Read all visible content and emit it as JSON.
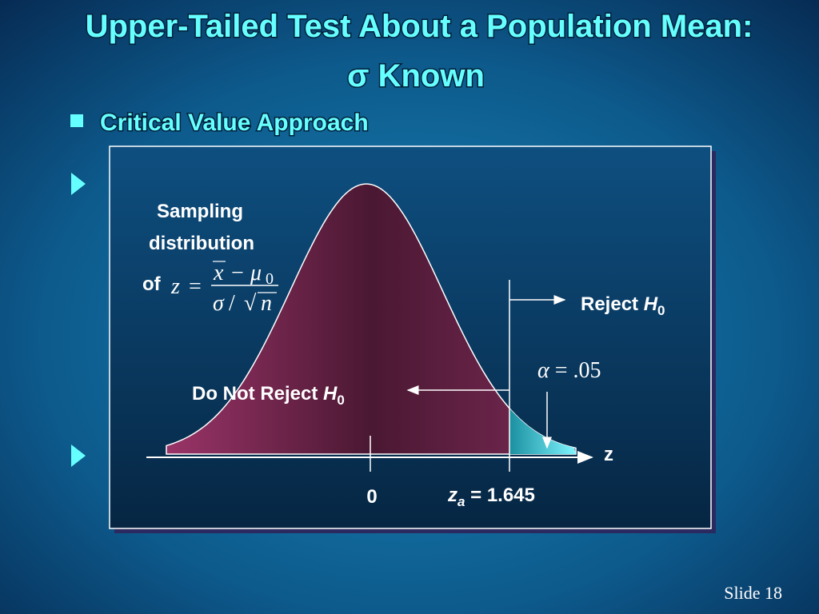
{
  "title": {
    "line1": "Upper-Tailed Test About a Population Mean:",
    "line2": "σ  Known"
  },
  "bullet": "Critical Value Approach",
  "diagram": {
    "sampling_label": {
      "line1": "Sampling",
      "line2": "distribution",
      "of": "of"
    },
    "formula": {
      "lhs": "z",
      "equals": "=",
      "num_x": "x",
      "minus": "−",
      "mu": "μ",
      "mu_sub": "0",
      "sigma": "σ",
      "slash": "/",
      "root": "√",
      "n": "n"
    },
    "reject": {
      "text": "Reject ",
      "h": "H",
      "sub": "0"
    },
    "alpha": {
      "symbol": "α",
      "rest": " = .05"
    },
    "do_not_reject": {
      "text": "Do Not Reject ",
      "h": "H",
      "sub": "0"
    },
    "axis_label": "z",
    "center_label": "0",
    "critical": {
      "z": "z",
      "sub": "a",
      "rest": " = 1.645"
    }
  },
  "footer": "Slide 18"
}
